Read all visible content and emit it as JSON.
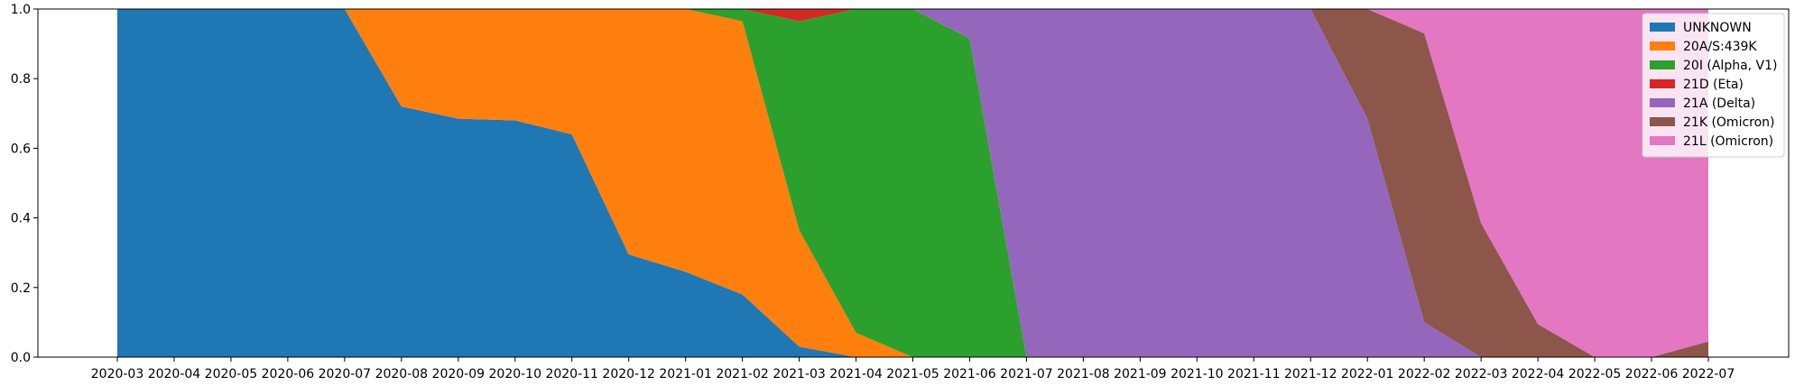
{
  "chart_data": {
    "type": "area",
    "stacked": true,
    "normalized": true,
    "x": [
      "2020-03",
      "2020-04",
      "2020-05",
      "2020-06",
      "2020-07",
      "2020-08",
      "2020-09",
      "2020-10",
      "2020-11",
      "2020-12",
      "2021-01",
      "2021-02",
      "2021-03",
      "2021-04",
      "2021-05",
      "2021-06",
      "2021-07",
      "2021-08",
      "2021-09",
      "2021-10",
      "2021-11",
      "2021-12",
      "2022-01",
      "2022-02",
      "2022-03",
      "2022-04",
      "2022-05",
      "2022-06",
      "2022-07"
    ],
    "series": [
      {
        "name": "UNKNOWN",
        "color": "#1f77b4",
        "values": [
          1.0,
          1.0,
          1.0,
          1.0,
          1.0,
          0.72,
          0.685,
          0.68,
          0.64,
          0.295,
          0.245,
          0.18,
          0.03,
          0.0,
          0.0,
          0.0,
          0.0,
          0.0,
          0.0,
          0.0,
          0.0,
          0.0,
          0.0,
          0.0,
          0.0,
          0.0,
          0.0,
          0.0,
          0.0
        ]
      },
      {
        "name": "20A/S:439K",
        "color": "#ff7f0e",
        "values": [
          0.0,
          0.0,
          0.0,
          0.0,
          0.0,
          0.28,
          0.315,
          0.32,
          0.36,
          0.705,
          0.755,
          0.785,
          0.335,
          0.07,
          0.0,
          0.0,
          0.0,
          0.0,
          0.0,
          0.0,
          0.0,
          0.0,
          0.0,
          0.0,
          0.0,
          0.0,
          0.0,
          0.0,
          0.0
        ]
      },
      {
        "name": "20I (Alpha, V1)",
        "color": "#2ca02c",
        "values": [
          0.0,
          0.0,
          0.0,
          0.0,
          0.0,
          0.0,
          0.0,
          0.0,
          0.0,
          0.0,
          0.0,
          0.035,
          0.6,
          0.93,
          1.0,
          0.915,
          0.0,
          0.0,
          0.0,
          0.0,
          0.0,
          0.0,
          0.0,
          0.0,
          0.0,
          0.0,
          0.0,
          0.0,
          0.0
        ]
      },
      {
        "name": "21D (Eta)",
        "color": "#d62728",
        "values": [
          0.0,
          0.0,
          0.0,
          0.0,
          0.0,
          0.0,
          0.0,
          0.0,
          0.0,
          0.0,
          0.0,
          0.0,
          0.035,
          0.0,
          0.0,
          0.0,
          0.0,
          0.0,
          0.0,
          0.0,
          0.0,
          0.0,
          0.0,
          0.0,
          0.0,
          0.0,
          0.0,
          0.0,
          0.0
        ]
      },
      {
        "name": "21A (Delta)",
        "color": "#9467bd",
        "values": [
          0.0,
          0.0,
          0.0,
          0.0,
          0.0,
          0.0,
          0.0,
          0.0,
          0.0,
          0.0,
          0.0,
          0.0,
          0.0,
          0.0,
          0.0,
          0.085,
          1.0,
          1.0,
          1.0,
          1.0,
          1.0,
          1.0,
          0.685,
          0.1,
          0.0,
          0.0,
          0.0,
          0.0,
          0.0
        ]
      },
      {
        "name": "21K (Omicron)",
        "color": "#8c564b",
        "values": [
          0.0,
          0.0,
          0.0,
          0.0,
          0.0,
          0.0,
          0.0,
          0.0,
          0.0,
          0.0,
          0.0,
          0.0,
          0.0,
          0.0,
          0.0,
          0.0,
          0.0,
          0.0,
          0.0,
          0.0,
          0.0,
          0.0,
          0.315,
          0.83,
          0.385,
          0.095,
          0.0,
          0.0,
          0.045
        ]
      },
      {
        "name": "21L (Omicron)",
        "color": "#e377c2",
        "values": [
          0.0,
          0.0,
          0.0,
          0.0,
          0.0,
          0.0,
          0.0,
          0.0,
          0.0,
          0.0,
          0.0,
          0.0,
          0.0,
          0.0,
          0.0,
          0.0,
          0.0,
          0.0,
          0.0,
          0.0,
          0.0,
          0.0,
          0.0,
          0.07,
          0.615,
          0.905,
          1.0,
          1.0,
          0.955
        ]
      }
    ],
    "y_ticks": [
      "0.0",
      "0.2",
      "0.4",
      "0.6",
      "0.8",
      "1.0"
    ],
    "ylim": [
      0,
      1.0
    ],
    "grid": false,
    "legend_position": "top-right",
    "title": "",
    "xlabel": "",
    "ylabel": ""
  }
}
